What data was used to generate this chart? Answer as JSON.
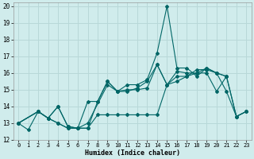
{
  "bg_color": "#d0ecec",
  "grid_color": "#b8d8d8",
  "line_color": "#006666",
  "xlabel": "Humidex (Indice chaleur)",
  "xlim": [
    -0.5,
    23.5
  ],
  "ylim": [
    12,
    20.2
  ],
  "xticks": [
    0,
    1,
    2,
    3,
    4,
    5,
    6,
    7,
    8,
    9,
    10,
    11,
    12,
    13,
    14,
    15,
    16,
    17,
    18,
    19,
    20,
    21,
    22,
    23
  ],
  "yticks": [
    12,
    13,
    14,
    15,
    16,
    17,
    18,
    19,
    20
  ],
  "lines": [
    {
      "x": [
        0,
        2,
        3,
        4,
        5,
        6,
        7,
        9,
        10,
        11,
        12,
        13,
        14,
        15,
        16,
        17,
        18,
        19,
        20,
        21,
        22,
        23
      ],
      "y": [
        13.0,
        13.7,
        13.3,
        14.0,
        12.8,
        12.7,
        13.0,
        15.3,
        14.9,
        15.3,
        15.3,
        15.6,
        17.2,
        20.0,
        16.3,
        16.3,
        15.8,
        16.3,
        16.0,
        14.9,
        13.4,
        13.7
      ]
    },
    {
      "x": [
        0,
        2,
        3,
        4,
        5,
        6,
        7,
        8,
        9,
        10,
        11,
        12,
        13,
        14,
        15,
        16,
        17,
        18,
        19,
        20,
        21
      ],
      "y": [
        13.0,
        13.7,
        13.3,
        14.0,
        12.8,
        12.7,
        14.3,
        14.3,
        15.5,
        14.9,
        14.9,
        15.1,
        15.5,
        16.5,
        15.3,
        15.5,
        15.8,
        16.0,
        16.3,
        16.0,
        15.8
      ]
    },
    {
      "x": [
        0,
        2,
        3,
        4,
        5,
        6,
        7,
        8,
        9,
        10,
        11,
        12,
        13,
        14,
        15,
        16,
        17,
        18,
        19,
        20,
        21,
        22,
        23
      ],
      "y": [
        13.0,
        13.7,
        13.3,
        13.0,
        12.7,
        12.7,
        12.7,
        14.3,
        15.5,
        14.9,
        15.0,
        15.0,
        15.1,
        16.5,
        15.3,
        16.1,
        16.0,
        16.0,
        16.0,
        14.9,
        15.8,
        13.4,
        13.7
      ]
    },
    {
      "x": [
        0,
        1,
        2,
        3,
        4,
        5,
        6,
        7,
        8,
        9,
        10,
        11,
        12,
        13,
        14,
        15,
        16,
        17,
        18,
        19,
        20,
        21,
        22,
        23
      ],
      "y": [
        13.0,
        12.6,
        13.7,
        13.3,
        13.0,
        12.7,
        12.7,
        12.7,
        13.5,
        13.5,
        13.5,
        13.5,
        13.5,
        13.5,
        13.5,
        15.3,
        15.8,
        15.8,
        16.2,
        16.2,
        16.0,
        15.8,
        13.4,
        13.7
      ]
    }
  ]
}
